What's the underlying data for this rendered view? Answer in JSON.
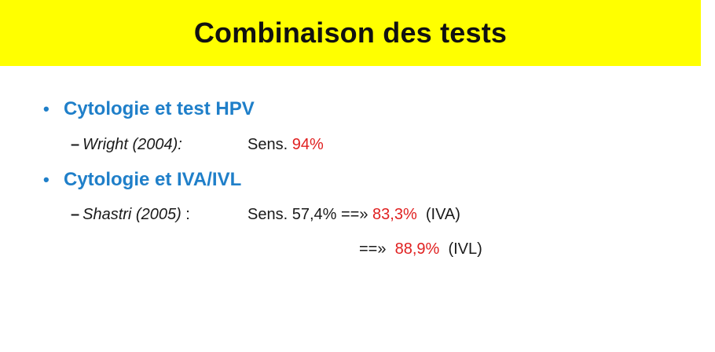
{
  "title": "Combinaison des tests",
  "colors": {
    "title_bg": "#ffff00",
    "bullet_blue": "#1f7fc9",
    "highlight_red": "#e02020"
  },
  "bullets": [
    {
      "label": "Cytologie et test HPV",
      "subs": [
        {
          "dash": "–",
          "author": "Wright (2004):",
          "sens": "Sens.",
          "value": "94%"
        }
      ]
    },
    {
      "label": "Cytologie et IVA/IVL",
      "subs": [
        {
          "dash": "–",
          "author": "Shastri (2005)",
          "sep": " :",
          "sens": "Sens. 57,4% ==»",
          "value": "83,3%",
          "suffix": "(IVA)"
        },
        {
          "arrow": "==»",
          "value": "88,9%",
          "suffix": "(IVL)"
        }
      ]
    }
  ]
}
